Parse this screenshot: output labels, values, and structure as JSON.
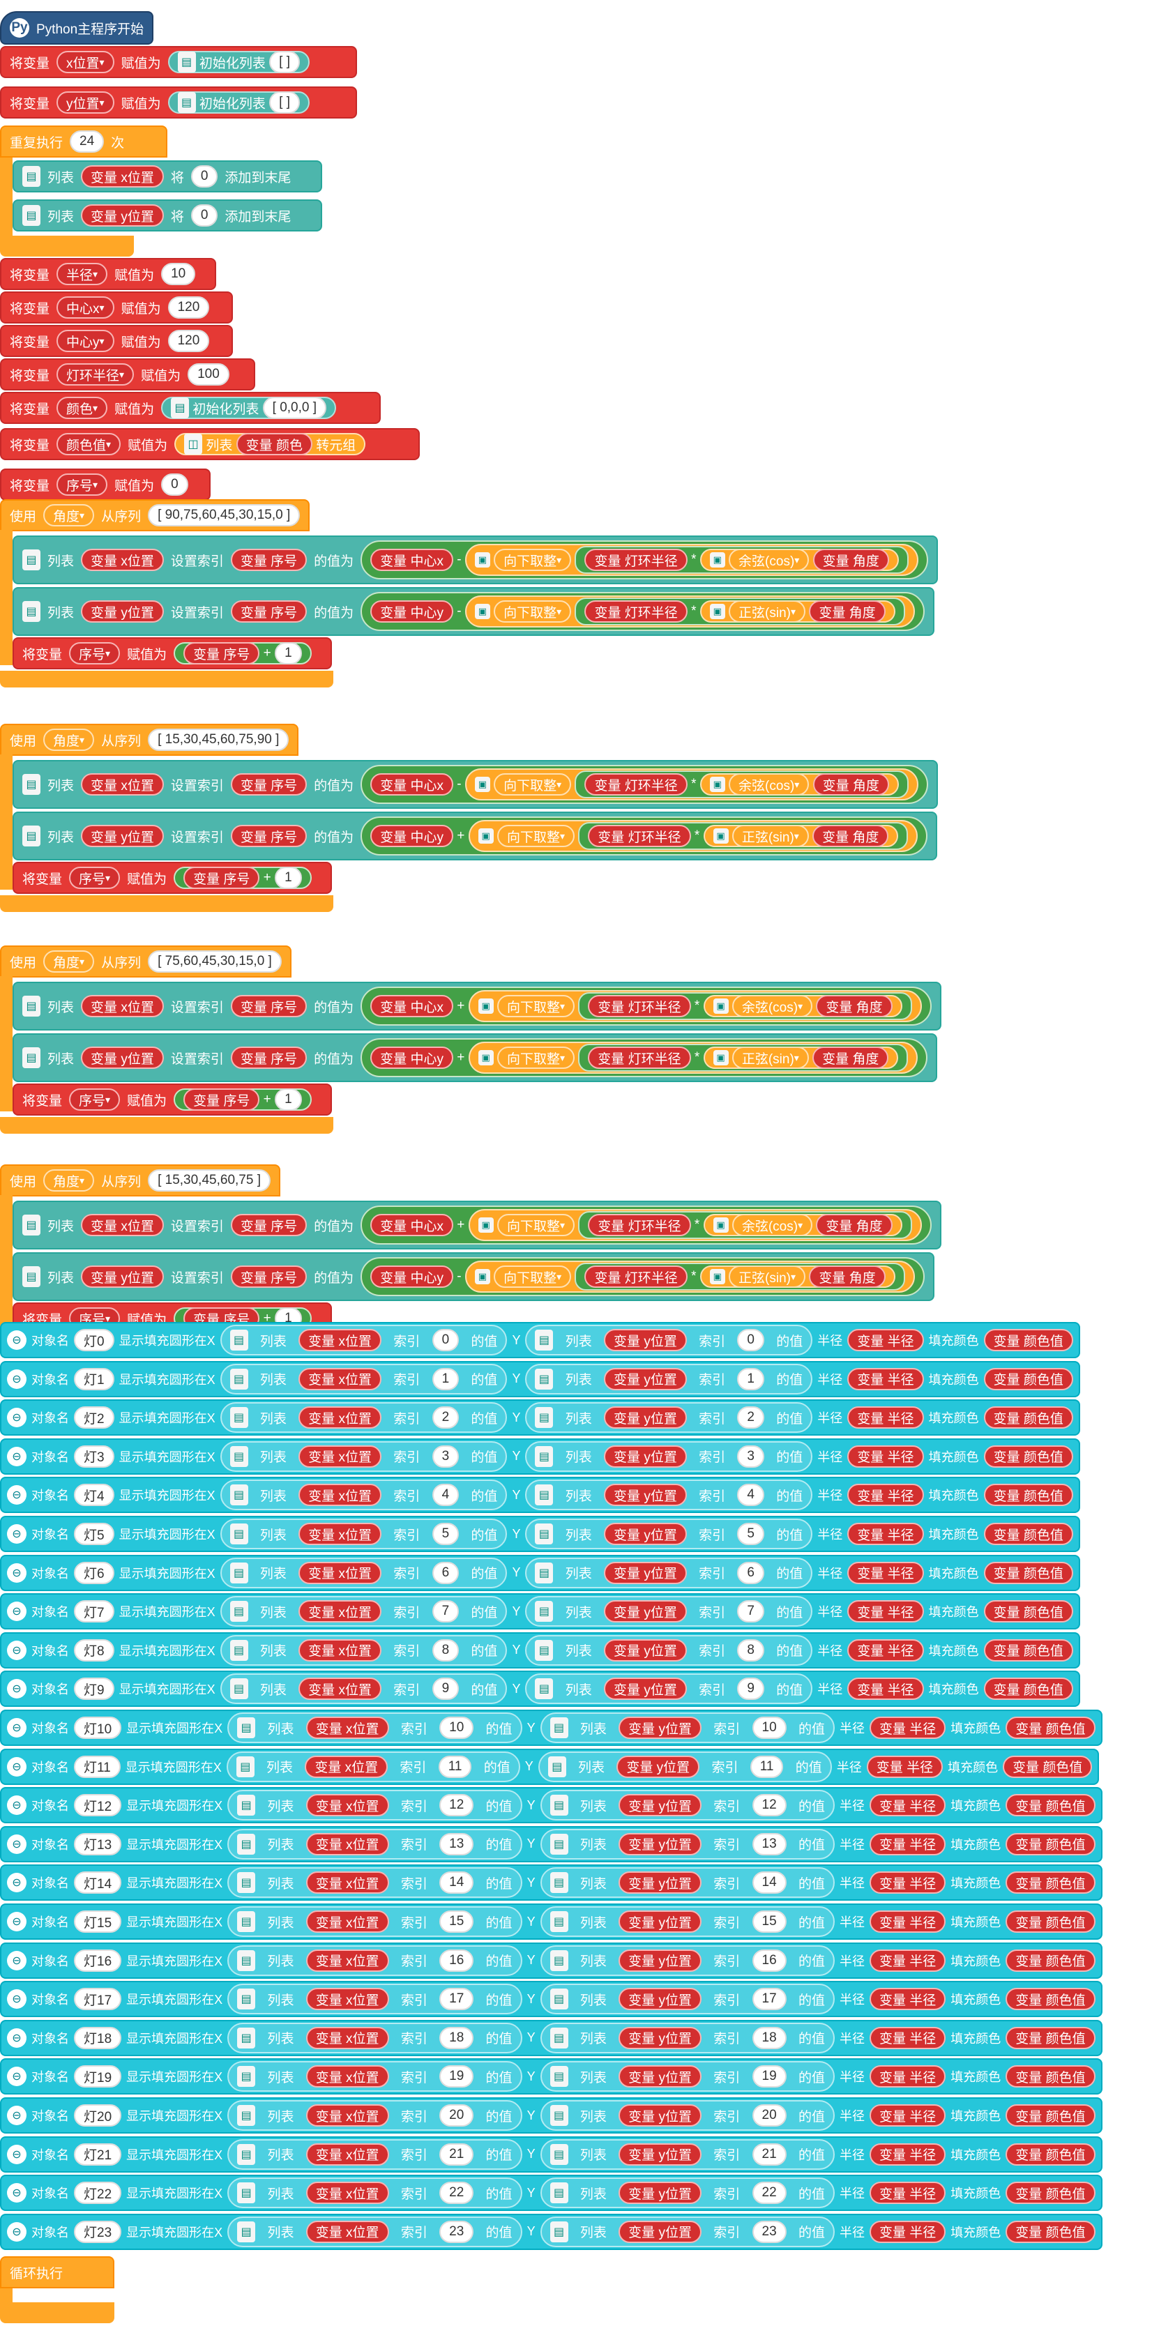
{
  "hat": {
    "label": "Python主程序开始"
  },
  "s": {
    "set_var": "将变量",
    "assign": "赋值为",
    "init_list": "初始化列表",
    "repeat": "重复执行",
    "times": "次",
    "list": "列表",
    "var": "变量",
    "will": "将",
    "append": "添加到末尾",
    "to_tuple": "转元组",
    "use": "使用",
    "from_seq": "从序列",
    "set_index": "设置索引",
    "value_of": "的值为",
    "floor": "向下取整",
    "cos": "余弦(cos)",
    "sin": "正弦(sin)",
    "obj_name": "对象名",
    "draw_circle": "显示填充圆形在X",
    "y": "Y",
    "index": "索引",
    "value": "的值",
    "radius": "半径",
    "fill": "填充颜色",
    "loop": "循环执行",
    "minus": "-",
    "plus": "+",
    "times_op": "*"
  },
  "vars": {
    "xpos": "x位置",
    "ypos": "y位置",
    "radius": "半径",
    "cx": "中心x",
    "cy": "中心y",
    "ring": "灯环半径",
    "color": "颜色",
    "colorval": "颜色值",
    "seq": "序号",
    "angle": "角度"
  },
  "vals": {
    "empty_list": "[ ]",
    "repeat_n": "24",
    "zero": "0",
    "ten": "10",
    "c120": "120",
    "r100": "100",
    "rgb": "[ 0,0,0 ]",
    "one": "1"
  },
  "loops": [
    {
      "seq": "[ 90,75,60,45,30,15,0 ]",
      "xop": "-",
      "yop": "-"
    },
    {
      "seq": "[ 15,30,45,60,75,90 ]",
      "xop": "-",
      "yop": "+"
    },
    {
      "seq": "[ 75,60,45,30,15,0 ]",
      "xop": "+",
      "yop": "+"
    },
    {
      "seq": "[ 15,30,45,60,75 ]",
      "xop": "+",
      "yop": "-"
    }
  ],
  "lights": [
    "灯0",
    "灯1",
    "灯2",
    "灯3",
    "灯4",
    "灯5",
    "灯6",
    "灯7",
    "灯8",
    "灯9",
    "灯10",
    "灯11",
    "灯12",
    "灯13",
    "灯14",
    "灯15",
    "灯16",
    "灯17",
    "灯18",
    "灯19",
    "灯20",
    "灯21",
    "灯22",
    "灯23"
  ],
  "indices": [
    "0",
    "1",
    "2",
    "3",
    "4",
    "5",
    "6",
    "7",
    "8",
    "9",
    "10",
    "11",
    "12",
    "13",
    "14",
    "15",
    "16",
    "17",
    "18",
    "19",
    "20",
    "21",
    "22",
    "23"
  ]
}
